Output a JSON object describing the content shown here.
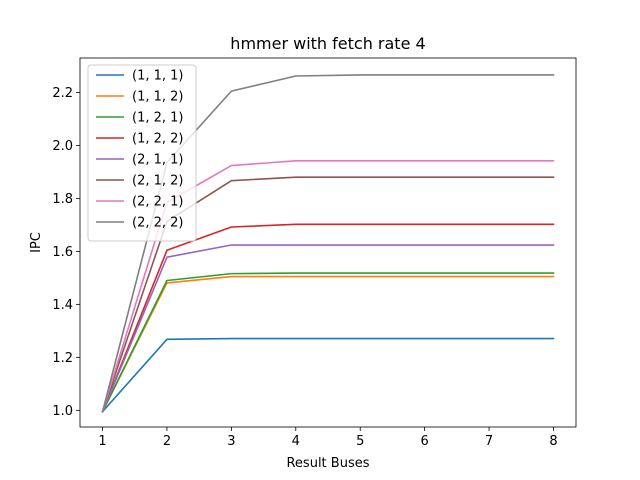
{
  "chart_data": {
    "type": "line",
    "title": "hmmer with fetch rate 4",
    "xlabel": "Result Buses",
    "ylabel": "IPC",
    "x": [
      1,
      2,
      3,
      4,
      5,
      6,
      7,
      8
    ],
    "xticks": [
      "1",
      "2",
      "3",
      "4",
      "5",
      "6",
      "7",
      "8"
    ],
    "yticks": [
      "1.0",
      "1.2",
      "1.4",
      "1.6",
      "1.8",
      "2.0",
      "2.2"
    ],
    "ytick_values": [
      1.0,
      1.2,
      1.4,
      1.6,
      1.8,
      2.0,
      2.2
    ],
    "xlim": [
      0.65,
      8.35
    ],
    "ylim": [
      0.937,
      2.33
    ],
    "grid": false,
    "legend_position": "upper-left",
    "series": [
      {
        "name": "(1, 1, 1)",
        "color": "#1f77b4",
        "values": [
          0.995,
          1.268,
          1.271,
          1.271,
          1.271,
          1.271,
          1.271,
          1.271
        ]
      },
      {
        "name": "(1, 1, 2)",
        "color": "#ff7f0e",
        "values": [
          0.995,
          1.481,
          1.505,
          1.505,
          1.505,
          1.505,
          1.505,
          1.505
        ]
      },
      {
        "name": "(1, 2, 1)",
        "color": "#2ca02c",
        "values": [
          0.995,
          1.49,
          1.516,
          1.518,
          1.518,
          1.518,
          1.518,
          1.518
        ]
      },
      {
        "name": "(1, 2, 2)",
        "color": "#d62728",
        "values": [
          0.995,
          1.604,
          1.692,
          1.702,
          1.702,
          1.702,
          1.702,
          1.702
        ]
      },
      {
        "name": "(2, 1, 1)",
        "color": "#9467bd",
        "values": [
          0.995,
          1.578,
          1.624,
          1.624,
          1.624,
          1.624,
          1.624,
          1.624
        ]
      },
      {
        "name": "(2, 1, 2)",
        "color": "#8c564b",
        "values": [
          0.995,
          1.713,
          1.867,
          1.88,
          1.88,
          1.88,
          1.88,
          1.88
        ]
      },
      {
        "name": "(2, 2, 1)",
        "color": "#e377c2",
        "values": [
          0.995,
          1.785,
          1.924,
          1.942,
          1.942,
          1.942,
          1.942,
          1.942
        ]
      },
      {
        "name": "(2, 2, 2)",
        "color": "#7f7f7f",
        "values": [
          0.995,
          1.935,
          2.205,
          2.262,
          2.266,
          2.266,
          2.266,
          2.266
        ]
      }
    ]
  }
}
